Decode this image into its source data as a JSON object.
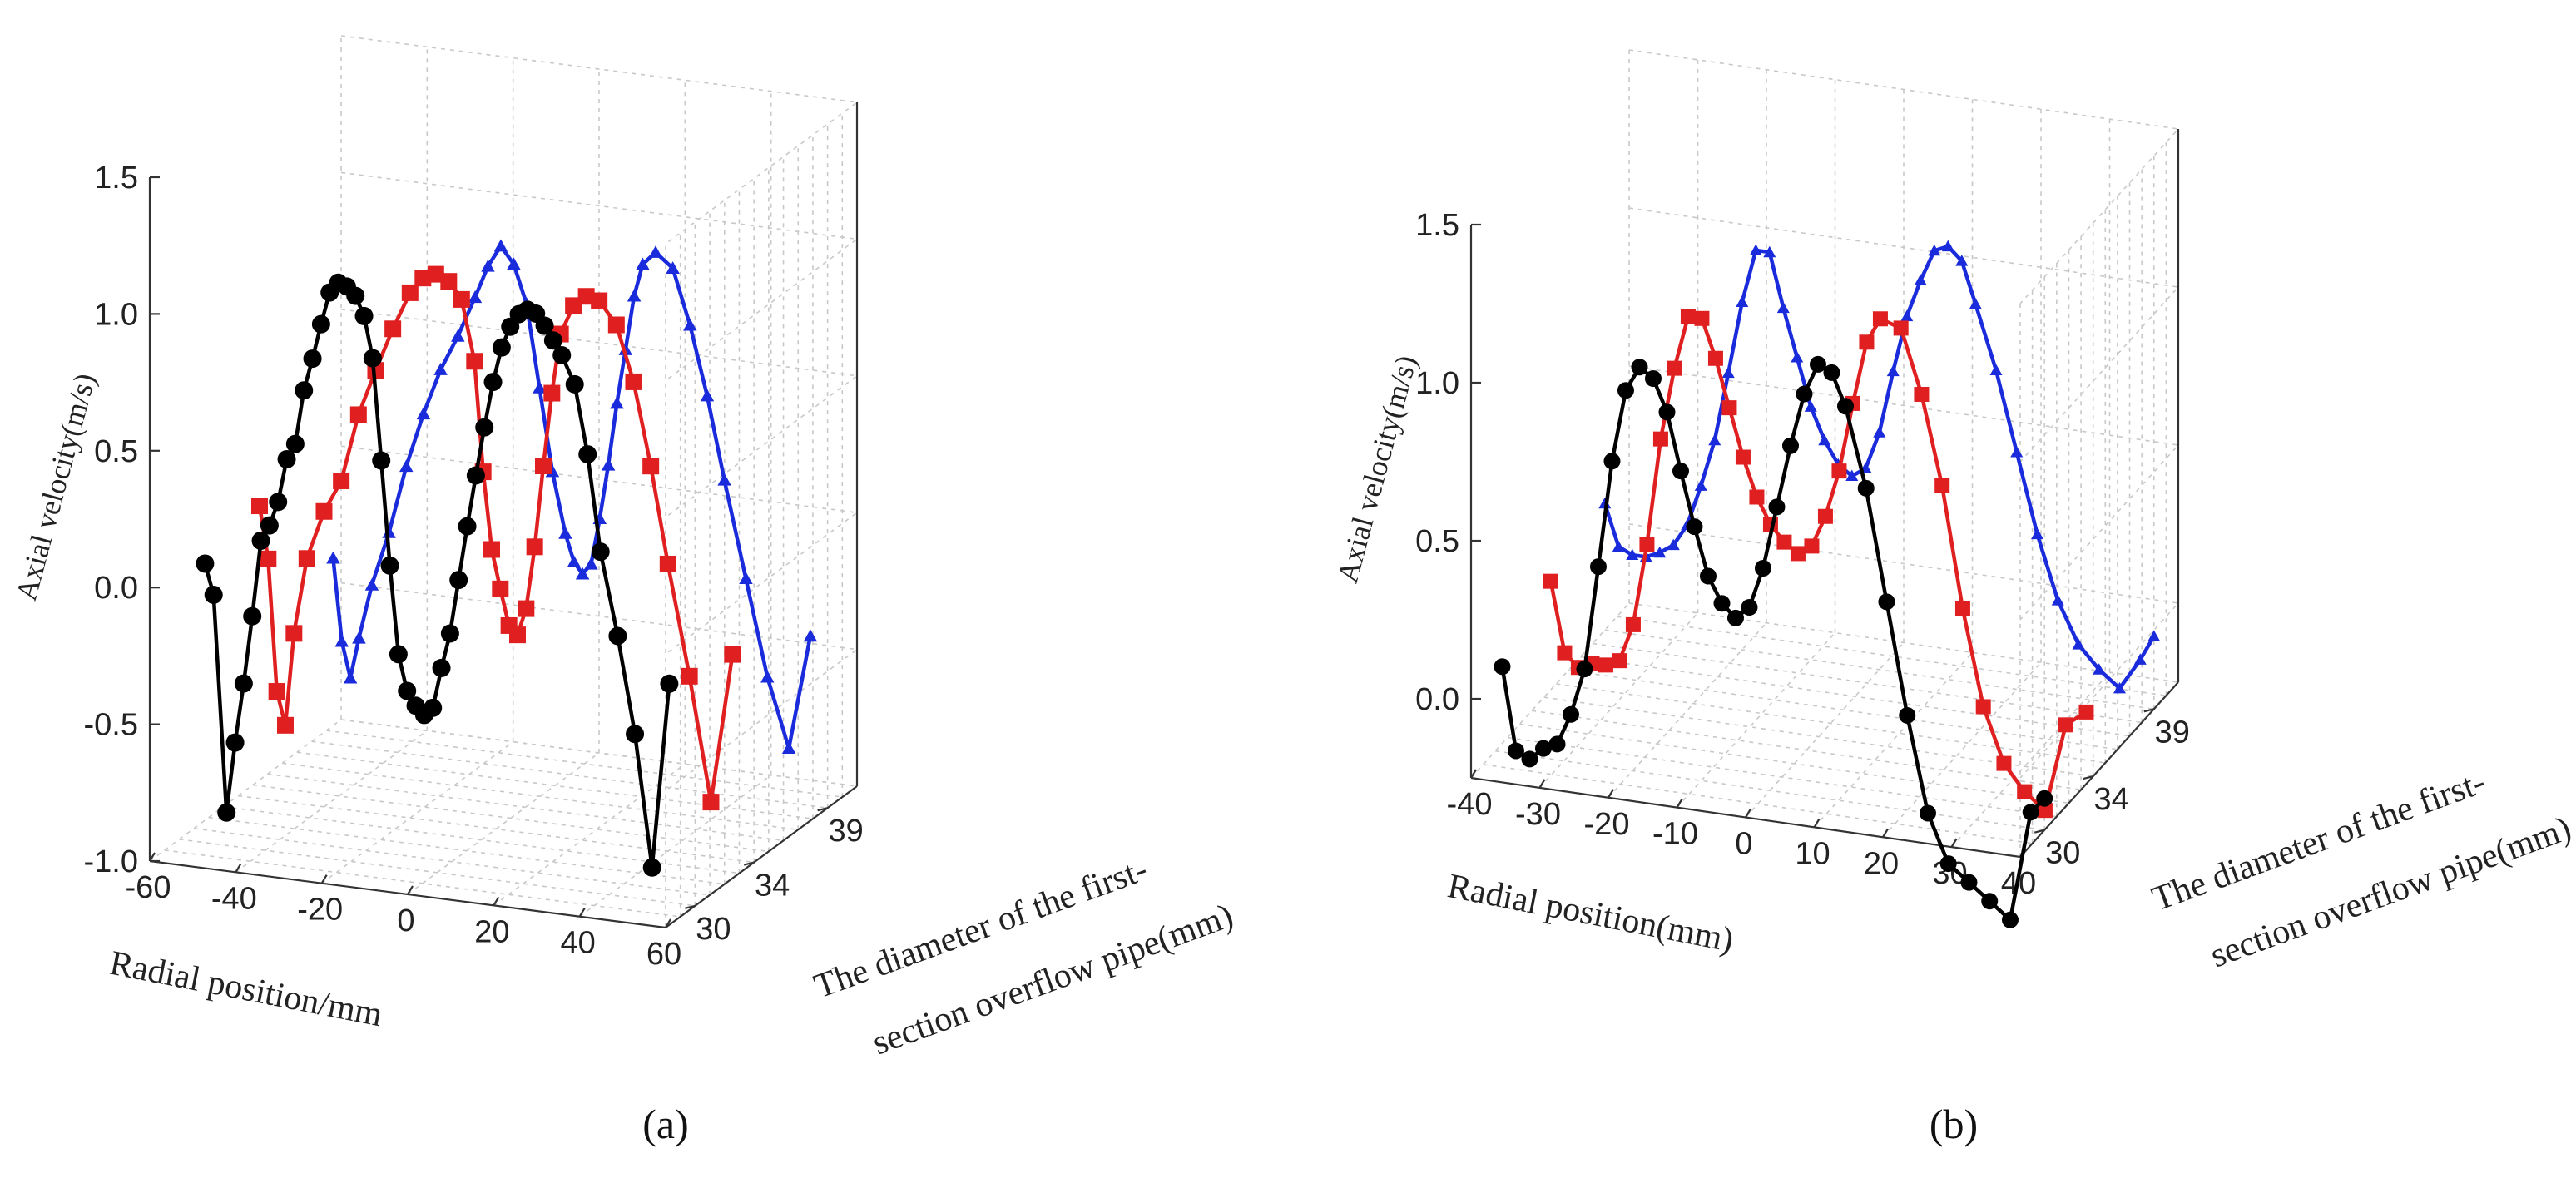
{
  "chart_data": [
    {
      "panel": "a",
      "type": "line",
      "caption": "(a)",
      "title": "",
      "xlabel": "Radial position/mm",
      "ylabel": "Axial velocity(m/s)",
      "zlabel": "The diameter of the first- section overflow pipe(mm)",
      "zlabel_lines": [
        "The diameter of the first-",
        "section overflow pipe(mm)"
      ],
      "xlim": [
        -60,
        60
      ],
      "ylim": [
        -1.0,
        1.5
      ],
      "x_ticks": [
        "-60",
        "-40",
        "-20",
        "0",
        "20",
        "40",
        "60"
      ],
      "y_ticks": [
        "-1.0",
        "-0.5",
        "0.0",
        "0.5",
        "1.0",
        "1.5"
      ],
      "z_ticks": [
        "30",
        "34",
        "39"
      ],
      "series": [
        {
          "name": "30",
          "z": 30,
          "color": "#000000",
          "marker": "circle",
          "x": [
            -54,
            -52,
            -49,
            -47,
            -45,
            -43,
            -41,
            -39,
            -37,
            -35,
            -33,
            -31,
            -29,
            -27,
            -25,
            -23,
            -21,
            -19,
            -17,
            -15,
            -13,
            -11,
            -9,
            -7,
            -5,
            -3,
            -1,
            1,
            3,
            5,
            7,
            9,
            11,
            13,
            15,
            17,
            19,
            21,
            23,
            25,
            27,
            29,
            32,
            35,
            38,
            42,
            46,
            50,
            54
          ],
          "y": [
            0.02,
            -0.09,
            -0.88,
            -0.62,
            -0.4,
            -0.15,
            0.13,
            0.19,
            0.28,
            0.44,
            0.5,
            0.7,
            0.82,
            0.95,
            1.07,
            1.11,
            1.1,
            1.07,
            1.0,
            0.85,
            0.48,
            0.1,
            -0.22,
            -0.35,
            -0.4,
            -0.43,
            -0.4,
            -0.25,
            -0.12,
            0.08,
            0.28,
            0.47,
            0.65,
            0.82,
            0.95,
            1.03,
            1.08,
            1.1,
            1.09,
            1.05,
            1.0,
            0.95,
            0.85,
            0.6,
            0.25,
            -0.05,
            -0.4,
            -0.88,
            -0.2
          ]
        },
        {
          "name": "34",
          "z": 34,
          "color": "#e02020",
          "marker": "square",
          "x": [
            -55,
            -53,
            -51,
            -49,
            -47,
            -44,
            -40,
            -36,
            -32,
            -28,
            -24,
            -20,
            -17,
            -14,
            -11,
            -8,
            -5,
            -3,
            -1,
            1,
            3,
            5,
            7,
            9,
            11,
            13,
            15,
            18,
            21,
            24,
            28,
            32,
            36,
            40,
            45,
            50,
            55
          ],
          "y": [
            0.07,
            -0.12,
            -0.6,
            -0.72,
            -0.38,
            -0.1,
            0.08,
            0.2,
            0.45,
            0.62,
            0.78,
            0.92,
            0.98,
            1.0,
            0.98,
            0.92,
            0.7,
            0.3,
            0.02,
            -0.12,
            -0.25,
            -0.28,
            -0.18,
            0.05,
            0.35,
            0.62,
            0.84,
            0.95,
            0.99,
            0.98,
            0.9,
            0.7,
            0.4,
            0.05,
            -0.35,
            -0.8,
            -0.25
          ]
        },
        {
          "name": "39",
          "z": 39,
          "color": "#1a2bdc",
          "marker": "triangle",
          "x": [
            -55,
            -53,
            -51,
            -49,
            -46,
            -42,
            -38,
            -34,
            -30,
            -26,
            -22,
            -19,
            -16,
            -13,
            -10,
            -7,
            -4,
            -1,
            1,
            3,
            5,
            7,
            9,
            11,
            13,
            15,
            17,
            20,
            24,
            28,
            32,
            36,
            41,
            46,
            51,
            56
          ],
          "y": [
            -0.32,
            -0.62,
            -0.75,
            -0.6,
            -0.4,
            -0.2,
            0.05,
            0.25,
            0.42,
            0.55,
            0.7,
            0.82,
            0.9,
            0.84,
            0.7,
            0.4,
            0.1,
            -0.12,
            -0.22,
            -0.26,
            -0.22,
            -0.05,
            0.15,
            0.38,
            0.58,
            0.78,
            0.9,
            0.95,
            0.9,
            0.7,
            0.45,
            0.15,
            -0.2,
            -0.55,
            -0.8,
            -0.38
          ]
        }
      ]
    },
    {
      "panel": "b",
      "type": "line",
      "caption": "(b)",
      "title": "",
      "xlabel": "Radial position(mm)",
      "ylabel": "Axial velocity(m/s)",
      "zlabel": "The diameter of the first- section overflow pipe(mm)",
      "zlabel_lines": [
        "The diameter of the first-",
        "section overflow pipe(mm)"
      ],
      "xlim": [
        -40,
        40
      ],
      "ylim": [
        -0.25,
        1.5
      ],
      "x_ticks": [
        "-40",
        "-30",
        "-20",
        "-10",
        "0",
        "10",
        "20",
        "30",
        "40"
      ],
      "y_ticks": [
        "0.0",
        "0.5",
        "1.0",
        "1.5"
      ],
      "z_ticks": [
        "30",
        "34",
        "39"
      ],
      "series": [
        {
          "name": "30",
          "z": 30,
          "color": "#000000",
          "marker": "circle",
          "x": [
            -39,
            -37,
            -35,
            -33,
            -31,
            -29,
            -27,
            -25,
            -23,
            -21,
            -19,
            -17,
            -15,
            -13,
            -11,
            -9,
            -7,
            -5,
            -3,
            -1,
            1,
            3,
            5,
            7,
            9,
            11,
            14,
            17,
            20,
            23,
            26,
            29,
            32,
            35,
            38,
            40
          ],
          "y": [
            0.02,
            -0.24,
            -0.26,
            -0.22,
            -0.2,
            -0.1,
            0.05,
            0.38,
            0.72,
            0.95,
            1.03,
            1.0,
            0.9,
            0.72,
            0.55,
            0.4,
            0.32,
            0.28,
            0.32,
            0.45,
            0.65,
            0.85,
            1.02,
            1.12,
            1.1,
            1.0,
            0.75,
            0.4,
            0.05,
            -0.25,
            -0.4,
            -0.45,
            -0.5,
            -0.55,
            -0.2,
            -0.15
          ]
        },
        {
          "name": "34",
          "z": 34,
          "color": "#e02020",
          "marker": "square",
          "x": [
            -39,
            -37,
            -35,
            -33,
            -31,
            -29,
            -27,
            -25,
            -23,
            -21,
            -19,
            -17,
            -15,
            -13,
            -11,
            -9,
            -7,
            -5,
            -3,
            -1,
            1,
            3,
            5,
            7,
            9,
            12,
            15,
            18,
            21,
            24,
            27,
            30,
            33,
            36,
            39
          ],
          "y": [
            0.12,
            -0.1,
            -0.14,
            -0.12,
            -0.12,
            -0.1,
            0.02,
            0.28,
            0.62,
            0.85,
            1.02,
            1.02,
            0.9,
            0.75,
            0.6,
            0.48,
            0.4,
            0.35,
            0.32,
            0.35,
            0.45,
            0.6,
            0.82,
            1.02,
            1.1,
            1.08,
            0.88,
            0.6,
            0.22,
            -0.08,
            -0.25,
            -0.33,
            -0.38,
            -0.1,
            -0.05
          ]
        },
        {
          "name": "39",
          "z": 39,
          "color": "#1a2bdc",
          "marker": "triangle",
          "x": [
            -40,
            -38,
            -36,
            -34,
            -32,
            -30,
            -28,
            -26,
            -24,
            -22,
            -20,
            -18,
            -16,
            -14,
            -12,
            -10,
            -8,
            -6,
            -4,
            -2,
            0,
            2,
            4,
            6,
            8,
            10,
            12,
            14,
            17,
            20,
            23,
            26,
            29,
            32,
            35,
            38,
            40
          ],
          "y": [
            0.15,
            0.02,
            0.0,
            0.0,
            0.02,
            0.05,
            0.12,
            0.25,
            0.4,
            0.62,
            0.85,
            1.02,
            1.02,
            0.85,
            0.7,
            0.55,
            0.45,
            0.38,
            0.35,
            0.38,
            0.5,
            0.7,
            0.88,
            1.0,
            1.1,
            1.12,
            1.08,
            0.95,
            0.75,
            0.5,
            0.25,
            0.05,
            -0.08,
            -0.15,
            -0.2,
            -0.1,
            -0.02
          ]
        }
      ]
    }
  ]
}
